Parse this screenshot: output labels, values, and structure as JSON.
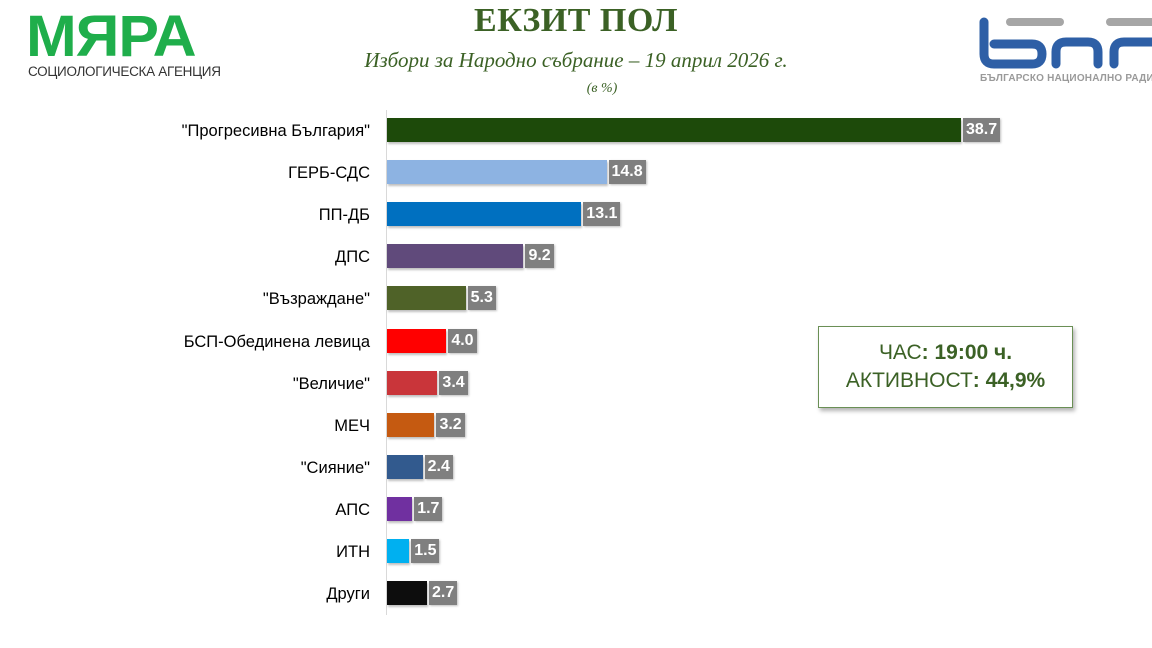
{
  "header": {
    "title": "ЕКЗИТ ПОЛ",
    "subtitle": "Избори за Народно събрание – 19 април 2026 г.",
    "unit": "(в %)"
  },
  "logos": {
    "left": {
      "word": "МЯРА",
      "tagline": "СОЦИОЛОГИЧЕСКА АГЕНЦИЯ",
      "color": "#1fae4b"
    },
    "right": {
      "tagline": "БЪЛГАРСКО НАЦИОНАЛНО РАДИ",
      "color": "#2e5fa6"
    }
  },
  "info_box": {
    "time_label": "ЧАС",
    "time_value": ": 19:00 ч.",
    "turnout_label": "АКТИВНОСТ",
    "turnout_value": ": 44,9%"
  },
  "chart_data": {
    "type": "bar",
    "orientation": "horizontal",
    "title": "ЕКЗИТ ПОЛ",
    "subtitle": "Избори за Народно събрание – 19 април 2026 г.",
    "xlabel": "",
    "ylabel": "",
    "unit": "%",
    "grid": false,
    "legend": null,
    "xlim": [
      0,
      40
    ],
    "categories": [
      "\"Прогресивна България\"",
      "ГЕРБ-СДС",
      "ПП-ДБ",
      "ДПС",
      "\"Възраждане\"",
      "БСП-Обединена левица",
      "\"Величие\"",
      "МЕЧ",
      "\"Сияние\"",
      "АПС",
      "ИТН",
      "Други"
    ],
    "values": [
      38.7,
      14.8,
      13.1,
      9.2,
      5.3,
      4.0,
      3.4,
      3.2,
      2.4,
      1.7,
      1.5,
      2.7
    ],
    "value_labels": [
      "38.7",
      "14.8",
      "13.1",
      "9.2",
      "5.3",
      "4.0",
      "3.4",
      "3.2",
      "2.4",
      "1.7",
      "1.5",
      "2.7"
    ],
    "colors": [
      "#1d4a0a",
      "#8db3e2",
      "#0070c0",
      "#604a7b",
      "#4f6228",
      "#ff0000",
      "#c9353a",
      "#c55a11",
      "#325a8e",
      "#7030a0",
      "#00b0f0",
      "#0d0d0d"
    ]
  }
}
